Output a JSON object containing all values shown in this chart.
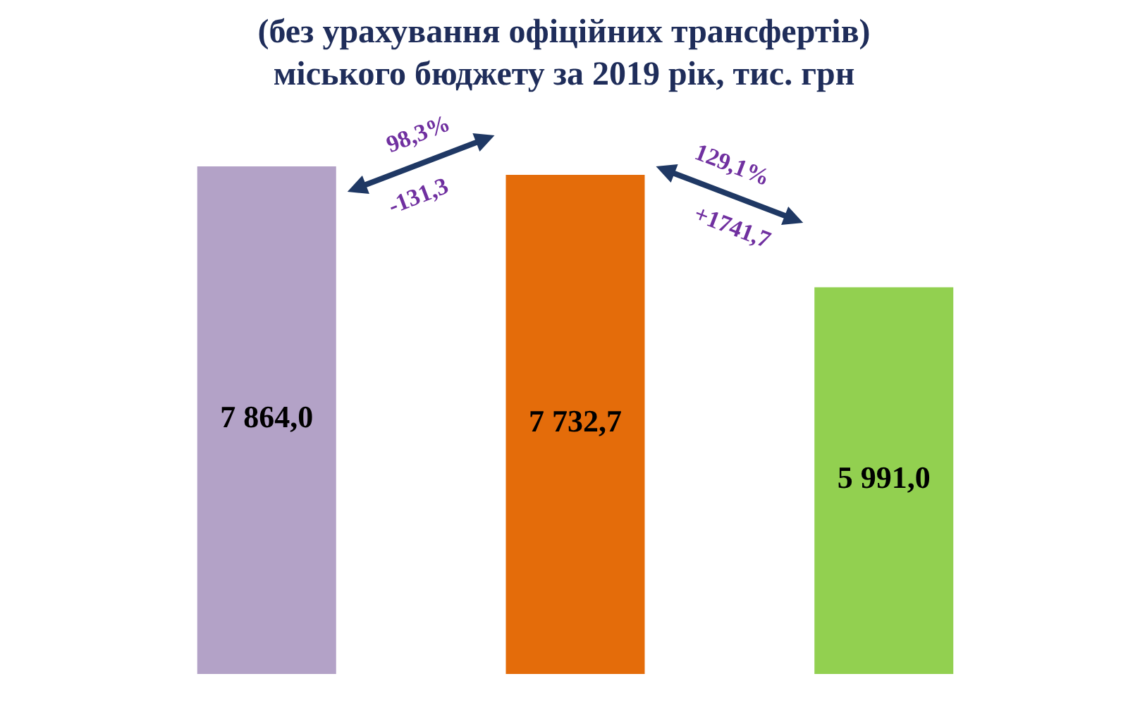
{
  "chart_data": {
    "type": "bar",
    "title": "(без урахування офіційних трансфертів)\nміського бюджету за 2019 рік, тис. грн",
    "categories": [
      null,
      null,
      null
    ],
    "values": [
      7864.0,
      7732.7,
      5991.0
    ],
    "value_labels": [
      "7 864,0",
      "7 732,7",
      "5 991,0"
    ],
    "colors": [
      "#b3a2c7",
      "#e46c0a",
      "#92d050"
    ],
    "annotations": [
      "98,3%",
      "-131,3",
      "129,1%",
      "+1741,7"
    ]
  }
}
